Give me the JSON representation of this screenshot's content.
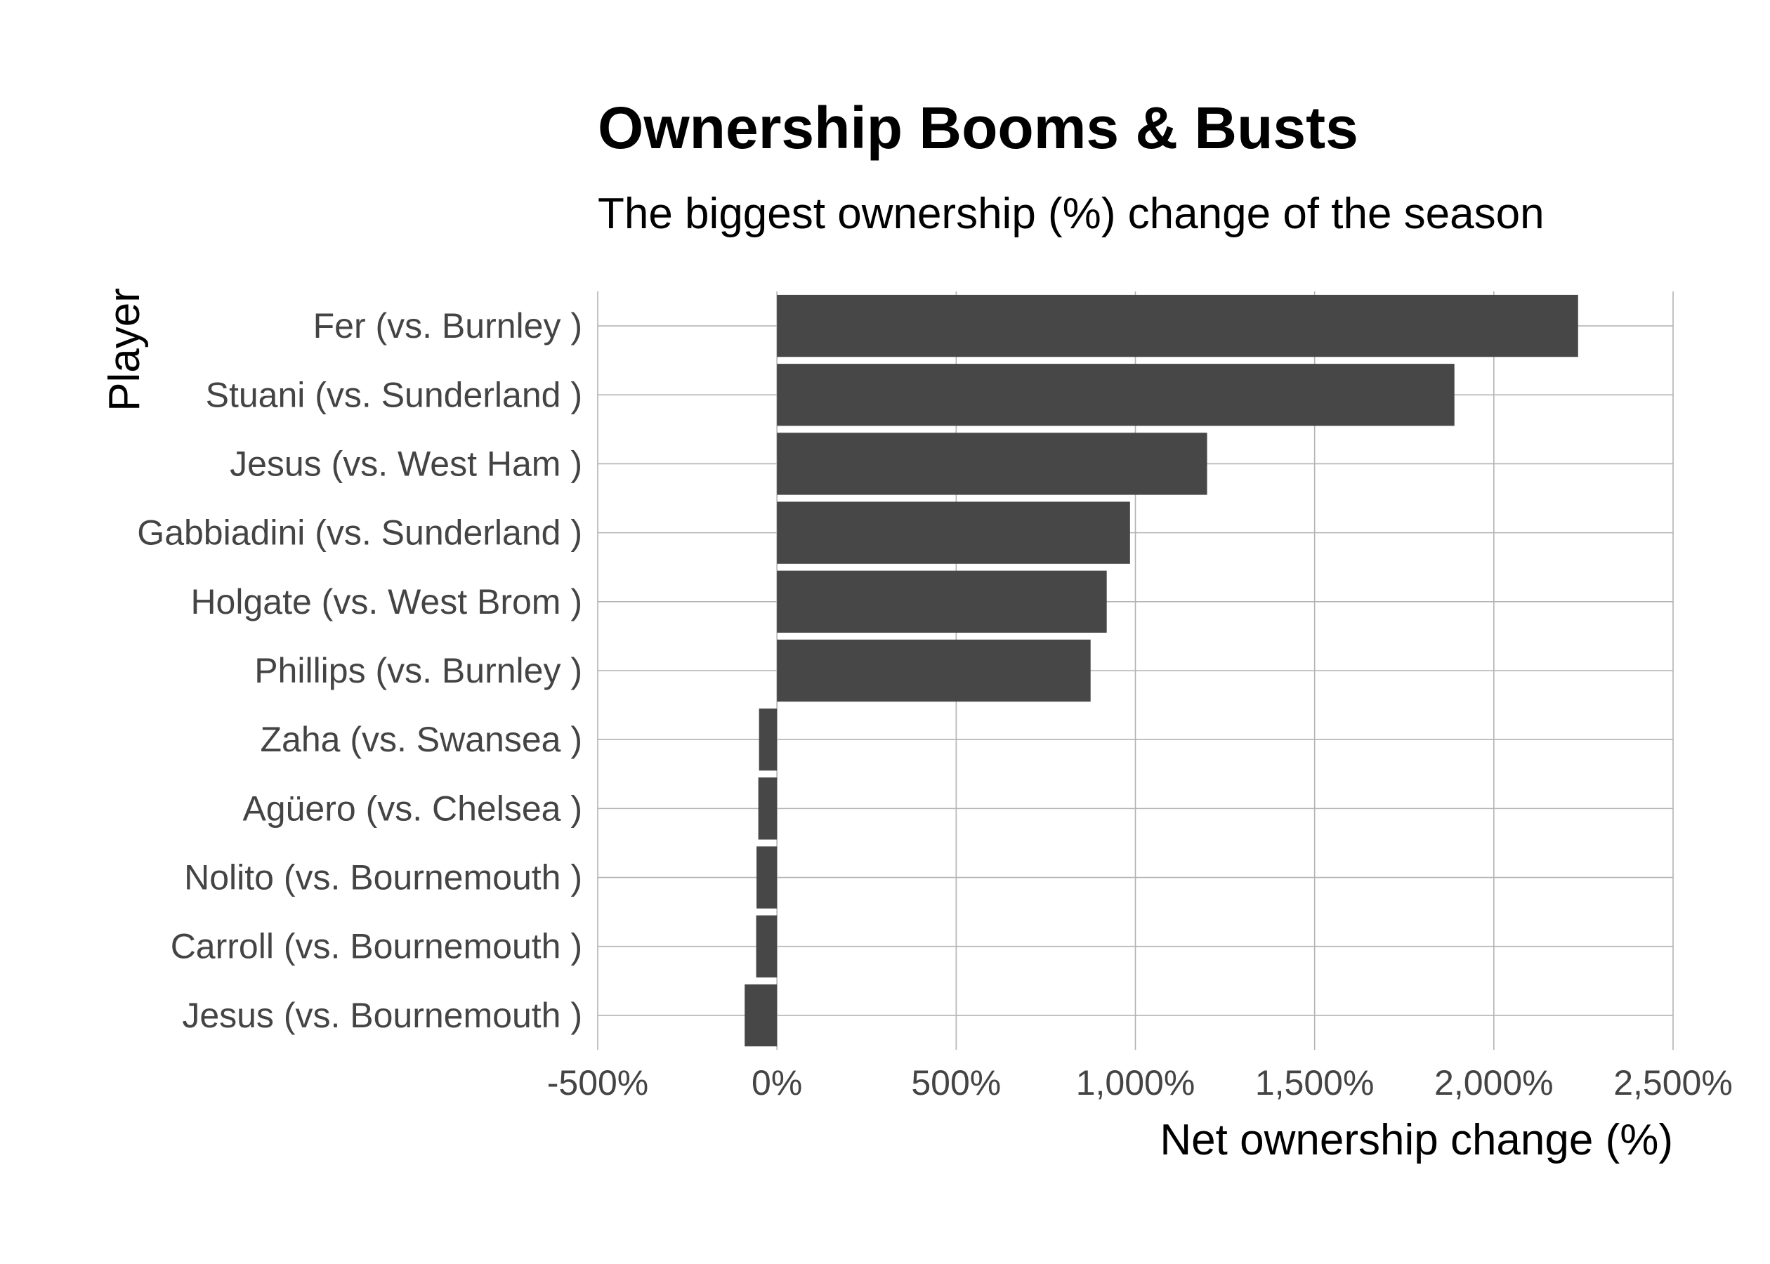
{
  "chart_data": {
    "type": "bar",
    "orientation": "horizontal",
    "title": "Ownership Booms & Busts",
    "subtitle": "The biggest ownership (%) change of the season",
    "xlabel": "Net ownership change (%)",
    "ylabel": "Player",
    "xlim": [
      -500,
      2500
    ],
    "x_ticks": [
      -500,
      0,
      500,
      1000,
      1500,
      2000,
      2500
    ],
    "x_tick_labels": [
      "-500%",
      "0%",
      "500%",
      "1,000%",
      "1,500%",
      "2,000%",
      "2,500%"
    ],
    "grid": true,
    "legend": "none",
    "bar_color": "#474747",
    "categories": [
      "Fer (vs. Burnley )",
      "Stuani (vs. Sunderland )",
      "Jesus (vs. West Ham )",
      "Gabbiadini (vs. Sunderland )",
      "Holgate (vs. West Brom )",
      "Phillips (vs. Burnley )",
      "Zaha (vs. Swansea )",
      "Agüero (vs. Chelsea )",
      "Nolito (vs. Bournemouth )",
      "Carroll (vs. Bournemouth )",
      "Jesus (vs. Bournemouth )"
    ],
    "values": [
      2235,
      1890,
      1200,
      985,
      920,
      875,
      -50,
      -52,
      -57,
      -58,
      -90
    ]
  }
}
